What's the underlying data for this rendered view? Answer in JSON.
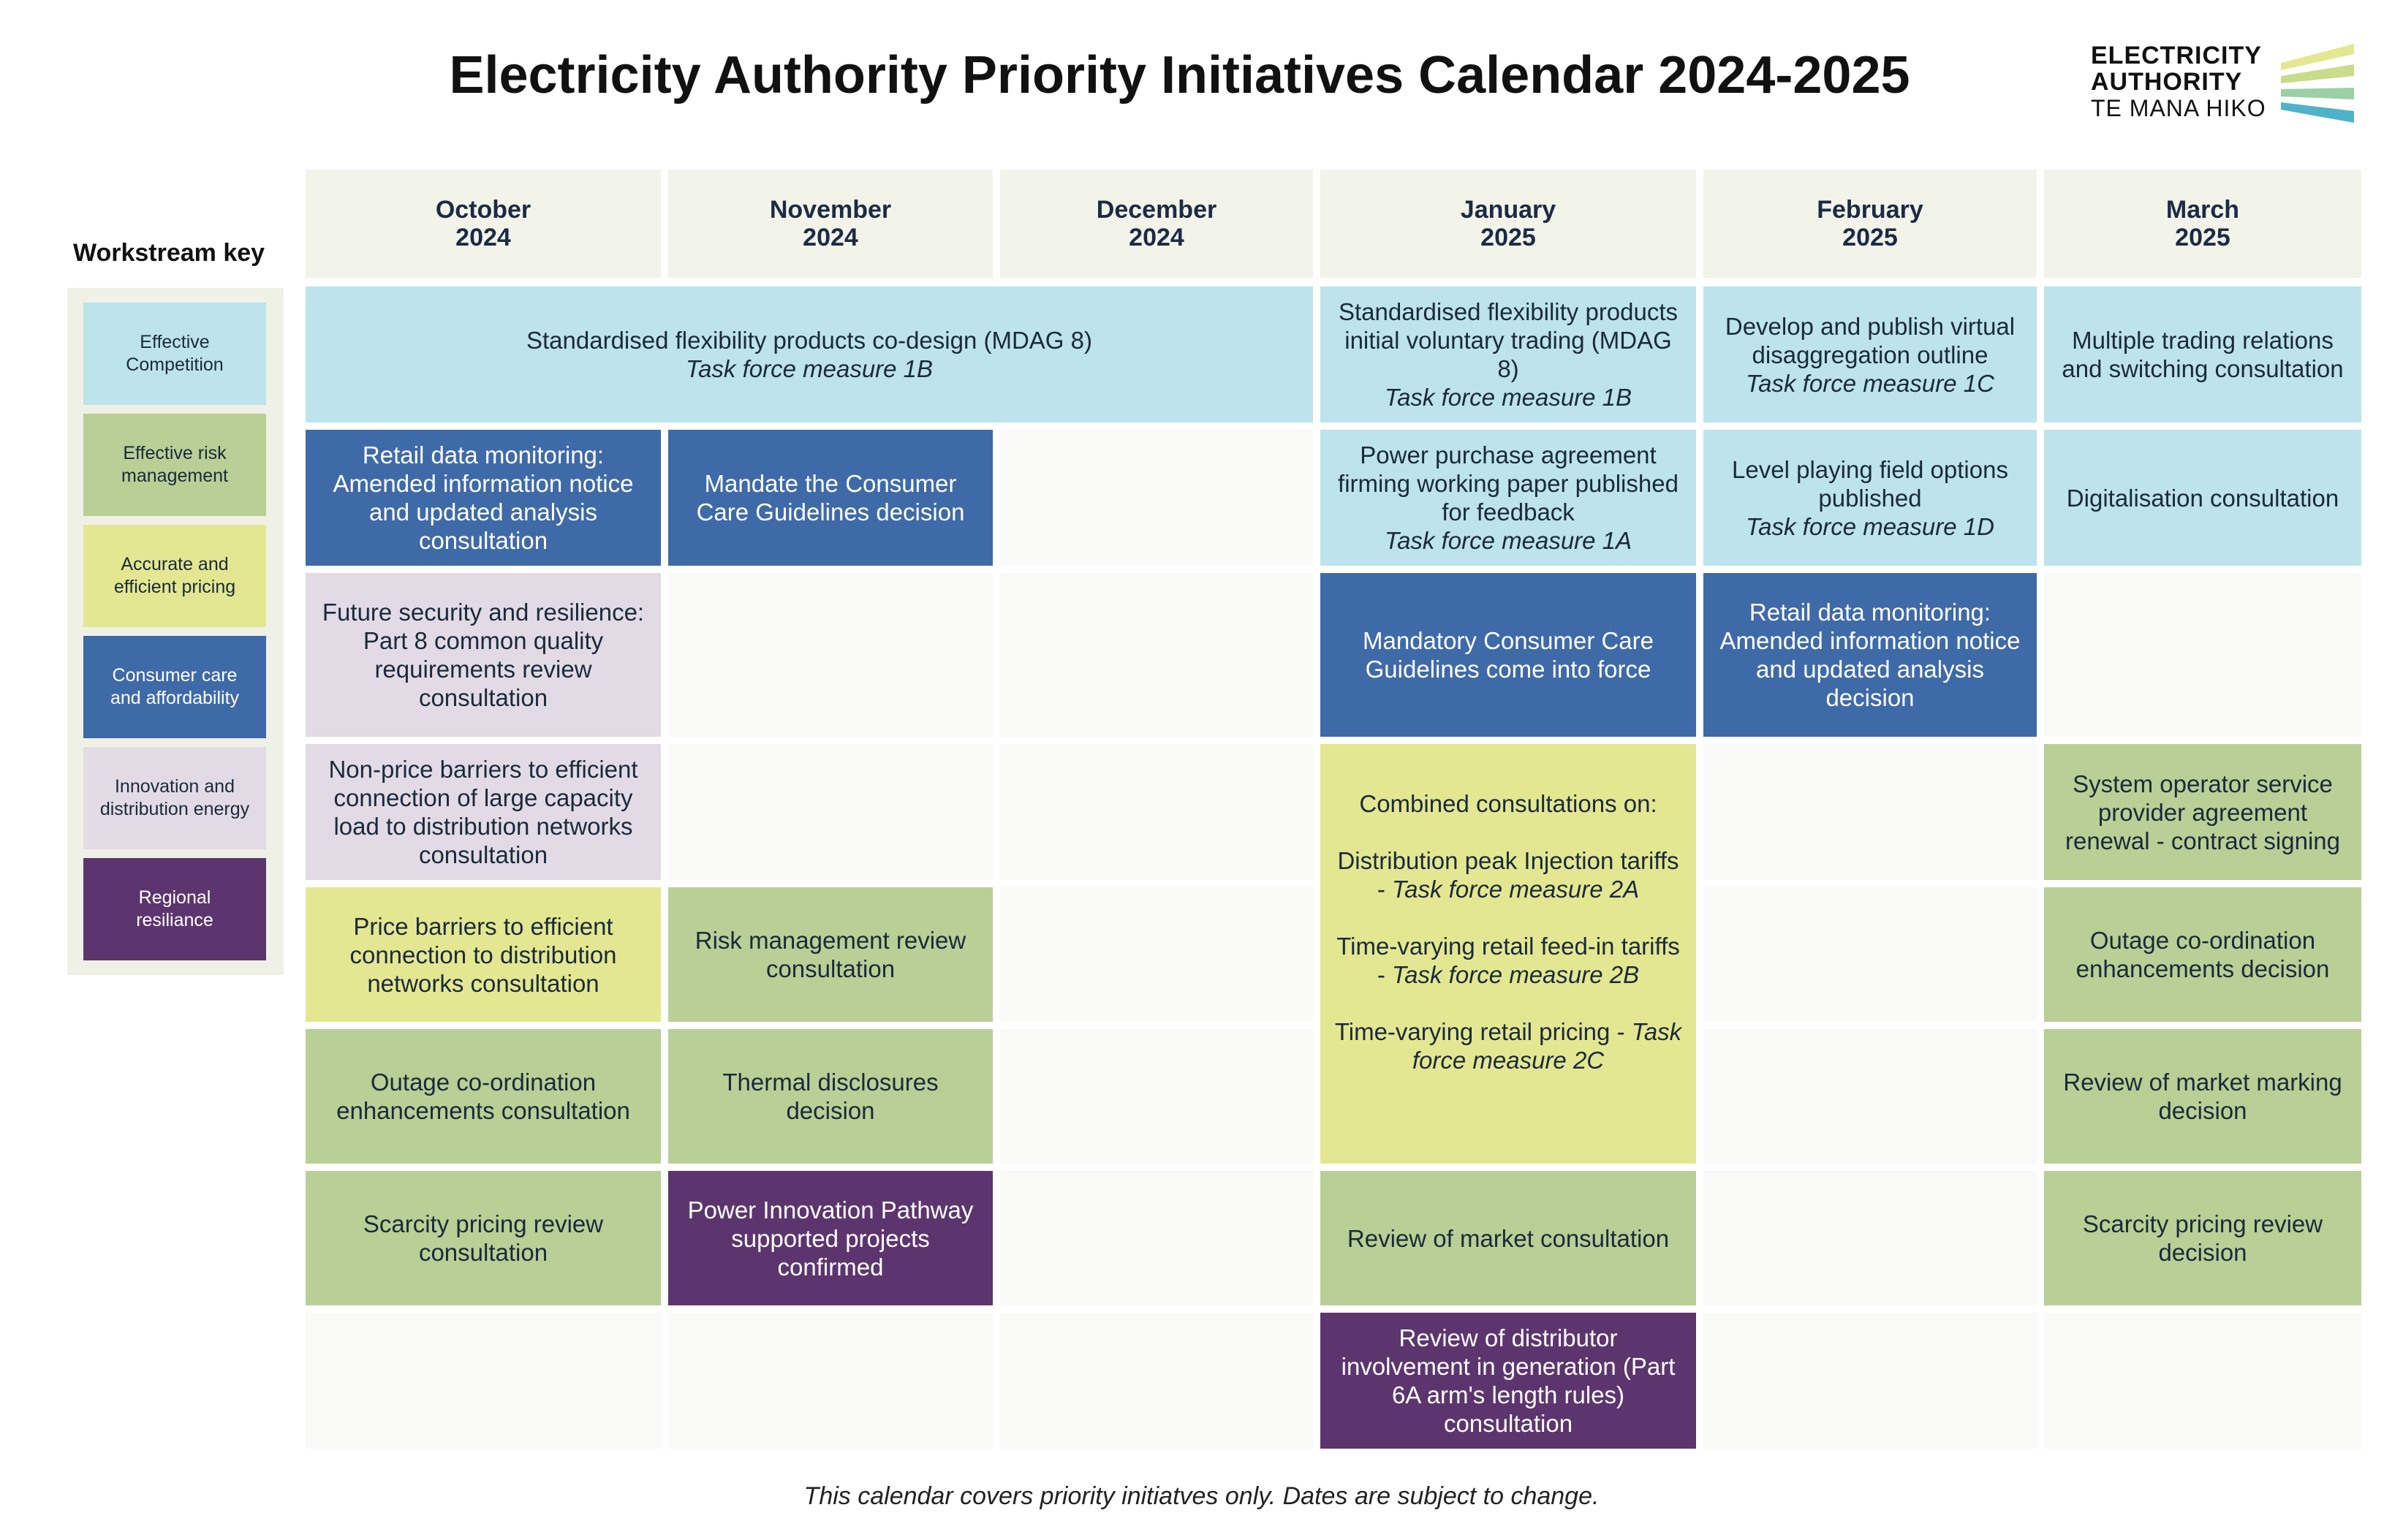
{
  "title": "Electricity Authority Priority Initiatives Calendar 2024-2025",
  "logo": {
    "line1": "ELECTRICITY",
    "line2": "AUTHORITY",
    "line3": "TE MANA HIKO"
  },
  "colors": {
    "effective_competition": "#bde3ec",
    "effective_risk_management": "#b8cf96",
    "accurate_efficient_pricing": "#e4e791",
    "consumer_care": "#3f6aa8",
    "innovation_distribution": "#e2dbe6",
    "regional_resilience": "#5d356e"
  },
  "key": {
    "title": "Workstream key",
    "items": [
      "Effective\nCompetition",
      "Effective risk\nmanagement",
      "Accurate and\nefficient pricing",
      "Consumer care\nand affordability",
      "Innovation and\ndistribution energy",
      "Regional\nresiliance"
    ]
  },
  "months": [
    "October\n2024",
    "November\n2024",
    "December\n2024",
    "January\n2025",
    "February\n2025",
    "March\n2025"
  ],
  "cells": {
    "r1_oct_dec": {
      "line1": "Standardised flexibility products co-design (MDAG 8)",
      "line2": "Task force measure 1B"
    },
    "r1_jan": {
      "line1": "Standardised flexibility products initial voluntary trading (MDAG 8)",
      "line2": "Task force measure 1B"
    },
    "r1_feb": {
      "line1": "Develop and publish virtual disaggregation outline",
      "line2": "Task force measure 1C"
    },
    "r1_mar": {
      "line1": "Multiple trading relations and switching consultation"
    },
    "r2_oct": {
      "line1": "Retail data monitoring: Amended information notice and updated analysis consultation"
    },
    "r2_nov": {
      "line1": "Mandate the Consumer Care Guidelines decision"
    },
    "r2_jan": {
      "line1": "Power purchase agreement firming working paper published for feedback",
      "line2": "Task force measure 1A"
    },
    "r2_feb": {
      "line1": "Level playing field options published",
      "line2": "Task force measure 1D"
    },
    "r2_mar": {
      "line1": "Digitalisation consultation"
    },
    "r3_oct": {
      "line1": "Future security and resilience: Part 8 common quality requirements review consultation"
    },
    "r3_jan": {
      "line1": "Mandatory Consumer Care Guidelines come into force"
    },
    "r3_feb": {
      "line1": "Retail data monitoring: Amended information notice and updated analysis decision"
    },
    "r4_oct": {
      "line1": "Non-price barriers to efficient connection of large capacity load to distribution networks consultation"
    },
    "r4_jan": {
      "intro": "Combined consultations on:",
      "a1": "Distribution peak Injection tariffs - ",
      "a2": "Task force measure 2A",
      "b1": "Time-varying retail feed-in tariffs - ",
      "b2": "Task force measure 2B",
      "c1": "Time-varying retail pricing - ",
      "c2": "Task force measure 2C"
    },
    "r4_mar": {
      "line1": "System operator service provider agreement renewal - contract signing"
    },
    "r5_oct": {
      "line1": "Price barriers to efficient connection to distribution networks consultation"
    },
    "r5_nov": {
      "line1": "Risk management review consultation"
    },
    "r5_mar": {
      "line1": "Outage co-ordination enhancements decision"
    },
    "r6_oct": {
      "line1": "Outage co-ordination enhancements consultation"
    },
    "r6_nov": {
      "line1": "Thermal disclosures decision"
    },
    "r6_mar": {
      "line1": "Review of market marking decision"
    },
    "r7_oct": {
      "line1": "Scarcity pricing review consultation"
    },
    "r7_nov": {
      "line1": "Power Innovation Pathway supported projects confirmed"
    },
    "r7_jan": {
      "line1": "Review of market consultation"
    },
    "r7_mar": {
      "line1": "Scarcity pricing review decision"
    },
    "r8_jan": {
      "line1": "Review of distributor involvement in generation (Part 6A arm's length rules) consultation"
    }
  },
  "footnote": "This calendar covers priority initiatves only. Dates are subject to change."
}
